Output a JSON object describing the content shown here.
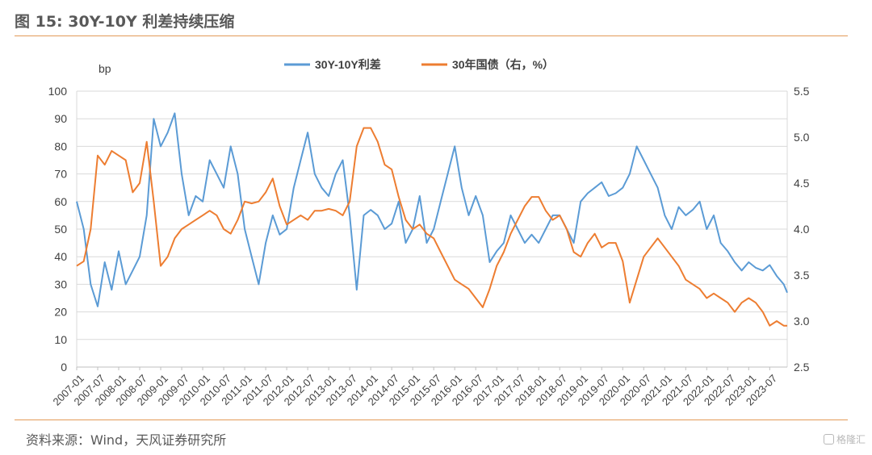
{
  "figure": {
    "title": "图 15:  30Y-10Y 利差持续压缩",
    "source": "资料来源：Wind，天风证券研究所",
    "watermark": "格隆汇"
  },
  "colors": {
    "series1": "#5B9BD5",
    "series2": "#ED7D31",
    "rule": "#E39A58",
    "axis": "#D9D9D9",
    "text": "#404040"
  },
  "chart_data": {
    "type": "line",
    "title": "",
    "y_unit": "bp",
    "y_left": {
      "ylim": [
        0,
        100
      ],
      "ticks": [
        0,
        10,
        20,
        30,
        40,
        50,
        60,
        70,
        80,
        90,
        100
      ]
    },
    "y_right": {
      "ylim": [
        2.5,
        5.5
      ],
      "ticks": [
        "2.5",
        "3.0",
        "3.5",
        "4.0",
        "4.5",
        "5.0",
        "5.5"
      ]
    },
    "x_ticks": [
      "2007-01",
      "2007-07",
      "2008-01",
      "2008-07",
      "2009-01",
      "2009-07",
      "2010-01",
      "2010-07",
      "2011-01",
      "2011-07",
      "2012-01",
      "2012-07",
      "2013-01",
      "2013-07",
      "2014-01",
      "2014-07",
      "2015-01",
      "2015-07",
      "2016-01",
      "2016-07",
      "2017-01",
      "2017-07",
      "2018-01",
      "2018-07",
      "2019-01",
      "2019-07",
      "2020-01",
      "2020-07",
      "2021-01",
      "2021-07",
      "2022-01",
      "2022-07",
      "2023-01",
      "2023-07"
    ],
    "x_range": [
      "2007-01",
      "2023-12"
    ],
    "grid": "horizontal",
    "legend": "top-center",
    "series": [
      {
        "name": "30Y-10Y利差",
        "axis": "left",
        "color": "#5B9BD5",
        "points": [
          [
            "2007-01",
            60
          ],
          [
            "2007-03",
            50
          ],
          [
            "2007-05",
            30
          ],
          [
            "2007-07",
            22
          ],
          [
            "2007-09",
            38
          ],
          [
            "2007-11",
            28
          ],
          [
            "2008-01",
            42
          ],
          [
            "2008-03",
            30
          ],
          [
            "2008-05",
            35
          ],
          [
            "2008-07",
            40
          ],
          [
            "2008-09",
            55
          ],
          [
            "2008-11",
            90
          ],
          [
            "2009-01",
            80
          ],
          [
            "2009-03",
            85
          ],
          [
            "2009-05",
            92
          ],
          [
            "2009-07",
            70
          ],
          [
            "2009-09",
            55
          ],
          [
            "2009-11",
            62
          ],
          [
            "2010-01",
            60
          ],
          [
            "2010-03",
            75
          ],
          [
            "2010-05",
            70
          ],
          [
            "2010-07",
            65
          ],
          [
            "2010-09",
            80
          ],
          [
            "2010-11",
            70
          ],
          [
            "2011-01",
            50
          ],
          [
            "2011-03",
            40
          ],
          [
            "2011-05",
            30
          ],
          [
            "2011-07",
            45
          ],
          [
            "2011-09",
            55
          ],
          [
            "2011-11",
            48
          ],
          [
            "2012-01",
            50
          ],
          [
            "2012-03",
            65
          ],
          [
            "2012-05",
            75
          ],
          [
            "2012-07",
            85
          ],
          [
            "2012-09",
            70
          ],
          [
            "2012-11",
            65
          ],
          [
            "2013-01",
            62
          ],
          [
            "2013-03",
            70
          ],
          [
            "2013-05",
            75
          ],
          [
            "2013-07",
            55
          ],
          [
            "2013-09",
            28
          ],
          [
            "2013-11",
            55
          ],
          [
            "2014-01",
            57
          ],
          [
            "2014-03",
            55
          ],
          [
            "2014-05",
            50
          ],
          [
            "2014-07",
            52
          ],
          [
            "2014-09",
            60
          ],
          [
            "2014-11",
            45
          ],
          [
            "2015-01",
            50
          ],
          [
            "2015-03",
            62
          ],
          [
            "2015-05",
            45
          ],
          [
            "2015-07",
            50
          ],
          [
            "2015-09",
            60
          ],
          [
            "2015-11",
            70
          ],
          [
            "2016-01",
            80
          ],
          [
            "2016-03",
            65
          ],
          [
            "2016-05",
            55
          ],
          [
            "2016-07",
            62
          ],
          [
            "2016-09",
            55
          ],
          [
            "2016-11",
            38
          ],
          [
            "2017-01",
            42
          ],
          [
            "2017-03",
            45
          ],
          [
            "2017-05",
            55
          ],
          [
            "2017-07",
            50
          ],
          [
            "2017-09",
            45
          ],
          [
            "2017-11",
            48
          ],
          [
            "2018-01",
            45
          ],
          [
            "2018-03",
            50
          ],
          [
            "2018-05",
            55
          ],
          [
            "2018-07",
            55
          ],
          [
            "2018-09",
            50
          ],
          [
            "2018-11",
            45
          ],
          [
            "2019-01",
            60
          ],
          [
            "2019-03",
            63
          ],
          [
            "2019-05",
            65
          ],
          [
            "2019-07",
            67
          ],
          [
            "2019-09",
            62
          ],
          [
            "2019-11",
            63
          ],
          [
            "2020-01",
            65
          ],
          [
            "2020-03",
            70
          ],
          [
            "2020-05",
            80
          ],
          [
            "2020-07",
            75
          ],
          [
            "2020-09",
            70
          ],
          [
            "2020-11",
            65
          ],
          [
            "2021-01",
            55
          ],
          [
            "2021-03",
            50
          ],
          [
            "2021-05",
            58
          ],
          [
            "2021-07",
            55
          ],
          [
            "2021-09",
            57
          ],
          [
            "2021-11",
            60
          ],
          [
            "2022-01",
            50
          ],
          [
            "2022-03",
            55
          ],
          [
            "2022-05",
            45
          ],
          [
            "2022-07",
            42
          ],
          [
            "2022-09",
            38
          ],
          [
            "2022-11",
            35
          ],
          [
            "2023-01",
            38
          ],
          [
            "2023-03",
            36
          ],
          [
            "2023-05",
            35
          ],
          [
            "2023-07",
            37
          ],
          [
            "2023-09",
            33
          ],
          [
            "2023-11",
            30
          ],
          [
            "2023-12",
            27
          ]
        ]
      },
      {
        "name": "30年国债（右，%）",
        "axis": "right",
        "color": "#ED7D31",
        "points": [
          [
            "2007-01",
            3.6
          ],
          [
            "2007-03",
            3.65
          ],
          [
            "2007-05",
            4.0
          ],
          [
            "2007-07",
            4.8
          ],
          [
            "2007-09",
            4.7
          ],
          [
            "2007-11",
            4.85
          ],
          [
            "2008-01",
            4.8
          ],
          [
            "2008-03",
            4.75
          ],
          [
            "2008-05",
            4.4
          ],
          [
            "2008-07",
            4.5
          ],
          [
            "2008-09",
            4.95
          ],
          [
            "2008-11",
            4.3
          ],
          [
            "2009-01",
            3.6
          ],
          [
            "2009-03",
            3.7
          ],
          [
            "2009-05",
            3.9
          ],
          [
            "2009-07",
            4.0
          ],
          [
            "2009-09",
            4.05
          ],
          [
            "2009-11",
            4.1
          ],
          [
            "2010-01",
            4.15
          ],
          [
            "2010-03",
            4.2
          ],
          [
            "2010-05",
            4.15
          ],
          [
            "2010-07",
            4.0
          ],
          [
            "2010-09",
            3.95
          ],
          [
            "2010-11",
            4.1
          ],
          [
            "2011-01",
            4.3
          ],
          [
            "2011-03",
            4.28
          ],
          [
            "2011-05",
            4.3
          ],
          [
            "2011-07",
            4.4
          ],
          [
            "2011-09",
            4.55
          ],
          [
            "2011-11",
            4.25
          ],
          [
            "2012-01",
            4.05
          ],
          [
            "2012-03",
            4.1
          ],
          [
            "2012-05",
            4.15
          ],
          [
            "2012-07",
            4.1
          ],
          [
            "2012-09",
            4.2
          ],
          [
            "2012-11",
            4.2
          ],
          [
            "2013-01",
            4.22
          ],
          [
            "2013-03",
            4.2
          ],
          [
            "2013-05",
            4.15
          ],
          [
            "2013-07",
            4.3
          ],
          [
            "2013-09",
            4.9
          ],
          [
            "2013-11",
            5.1
          ],
          [
            "2014-01",
            5.1
          ],
          [
            "2014-03",
            4.95
          ],
          [
            "2014-05",
            4.7
          ],
          [
            "2014-07",
            4.65
          ],
          [
            "2014-09",
            4.35
          ],
          [
            "2014-11",
            4.1
          ],
          [
            "2015-01",
            4.0
          ],
          [
            "2015-03",
            4.05
          ],
          [
            "2015-05",
            3.95
          ],
          [
            "2015-07",
            3.9
          ],
          [
            "2015-09",
            3.75
          ],
          [
            "2015-11",
            3.6
          ],
          [
            "2016-01",
            3.45
          ],
          [
            "2016-03",
            3.4
          ],
          [
            "2016-05",
            3.35
          ],
          [
            "2016-07",
            3.25
          ],
          [
            "2016-09",
            3.15
          ],
          [
            "2016-11",
            3.35
          ],
          [
            "2017-01",
            3.6
          ],
          [
            "2017-03",
            3.75
          ],
          [
            "2017-05",
            3.95
          ],
          [
            "2017-07",
            4.1
          ],
          [
            "2017-09",
            4.25
          ],
          [
            "2017-11",
            4.35
          ],
          [
            "2018-01",
            4.35
          ],
          [
            "2018-03",
            4.2
          ],
          [
            "2018-05",
            4.1
          ],
          [
            "2018-07",
            4.15
          ],
          [
            "2018-09",
            4.0
          ],
          [
            "2018-11",
            3.75
          ],
          [
            "2019-01",
            3.7
          ],
          [
            "2019-03",
            3.85
          ],
          [
            "2019-05",
            3.95
          ],
          [
            "2019-07",
            3.8
          ],
          [
            "2019-09",
            3.85
          ],
          [
            "2019-11",
            3.85
          ],
          [
            "2020-01",
            3.65
          ],
          [
            "2020-03",
            3.2
          ],
          [
            "2020-05",
            3.45
          ],
          [
            "2020-07",
            3.7
          ],
          [
            "2020-09",
            3.8
          ],
          [
            "2020-11",
            3.9
          ],
          [
            "2021-01",
            3.8
          ],
          [
            "2021-03",
            3.7
          ],
          [
            "2021-05",
            3.6
          ],
          [
            "2021-07",
            3.45
          ],
          [
            "2021-09",
            3.4
          ],
          [
            "2021-11",
            3.35
          ],
          [
            "2022-01",
            3.25
          ],
          [
            "2022-03",
            3.3
          ],
          [
            "2022-05",
            3.25
          ],
          [
            "2022-07",
            3.2
          ],
          [
            "2022-09",
            3.1
          ],
          [
            "2022-11",
            3.2
          ],
          [
            "2023-01",
            3.25
          ],
          [
            "2023-03",
            3.2
          ],
          [
            "2023-05",
            3.1
          ],
          [
            "2023-07",
            2.95
          ],
          [
            "2023-09",
            3.0
          ],
          [
            "2023-11",
            2.95
          ],
          [
            "2023-12",
            2.95
          ]
        ]
      }
    ]
  }
}
